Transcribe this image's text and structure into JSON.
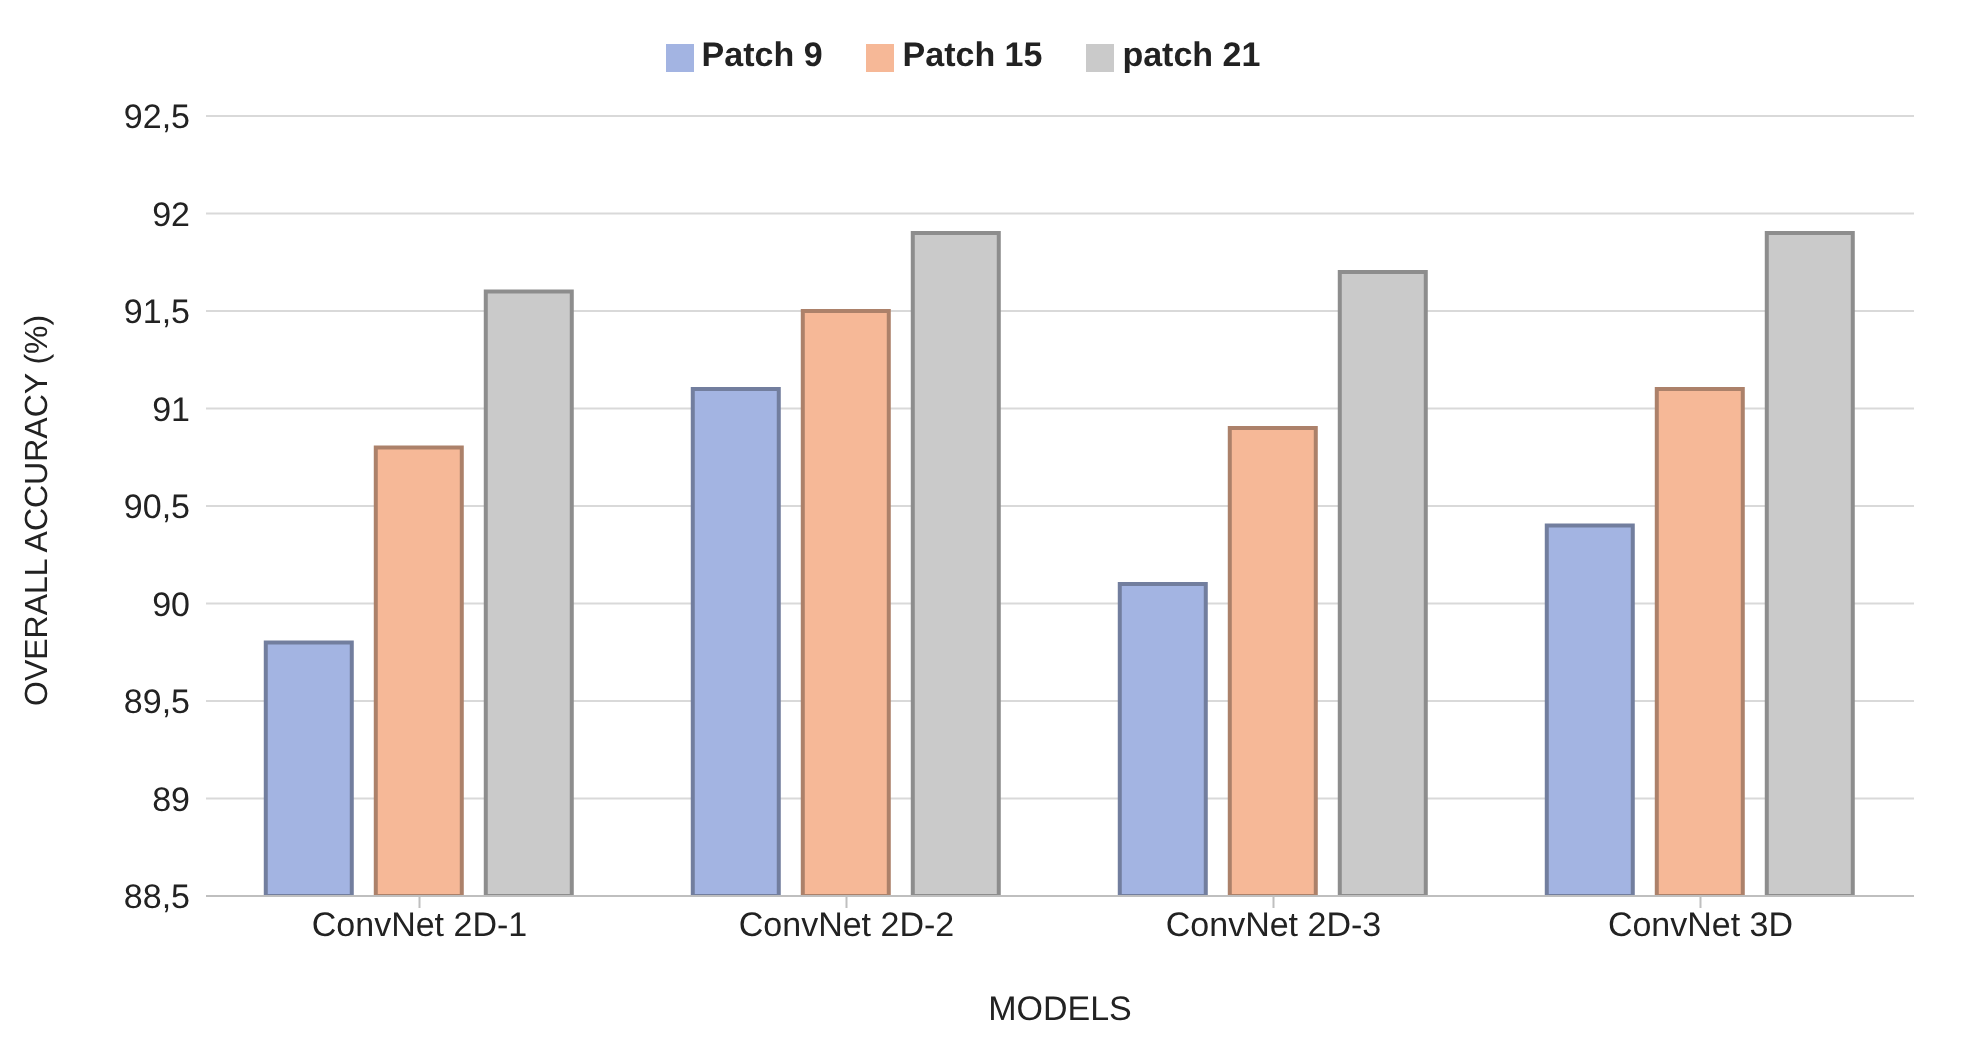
{
  "chart_data": {
    "type": "bar",
    "xlabel": "MODELS",
    "ylabel": "OVERALL ACCURACY (%)",
    "categories": [
      "ConvNet 2D-1",
      "ConvNet 2D-2",
      "ConvNet 2D-3",
      "ConvNet 3D"
    ],
    "series": [
      {
        "name": "Patch 9",
        "color": "#a3b4e2",
        "values": [
          89.8,
          91.1,
          90.1,
          90.4
        ]
      },
      {
        "name": "Patch 15",
        "color": "#f6b897",
        "values": [
          90.8,
          91.5,
          90.9,
          91.1
        ]
      },
      {
        "name": "patch 21",
        "color": "#cacaca",
        "values": [
          91.6,
          91.9,
          91.7,
          91.9
        ]
      }
    ],
    "ylim": [
      88.5,
      92.5
    ],
    "yticks": [
      {
        "value": 88.5,
        "label": "88,5"
      },
      89,
      {
        "value": 89.5,
        "label": "89,5"
      },
      90,
      {
        "value": 90.5,
        "label": "90,5"
      },
      91,
      {
        "value": 91.5,
        "label": "91,5"
      },
      92,
      {
        "value": 92.5,
        "label": "92,5"
      }
    ],
    "grid": "y",
    "legend": "top"
  }
}
